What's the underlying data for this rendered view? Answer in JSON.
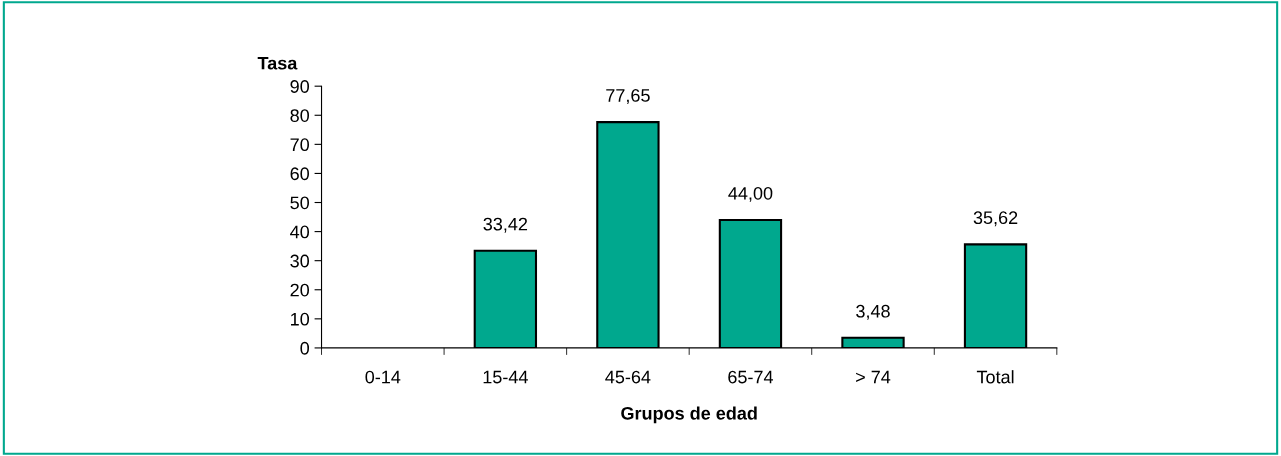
{
  "chart_data": {
    "type": "bar",
    "ylabel": "Tasa",
    "xlabel": "Grupos de edad",
    "categories": [
      "0-14",
      "15-44",
      "45-64",
      "65-74",
      "> 74",
      "Total"
    ],
    "values": [
      null,
      33.42,
      77.65,
      44.0,
      3.48,
      35.62
    ],
    "value_labels": [
      null,
      "33,42",
      "77,65",
      "44,00",
      "3,48",
      "35,62"
    ],
    "color": "#00a88e",
    "ylim": [
      0,
      90
    ],
    "yticks": [
      0,
      10,
      20,
      30,
      40,
      50,
      60,
      70,
      80,
      90
    ],
    "grid": false,
    "legend": false
  }
}
